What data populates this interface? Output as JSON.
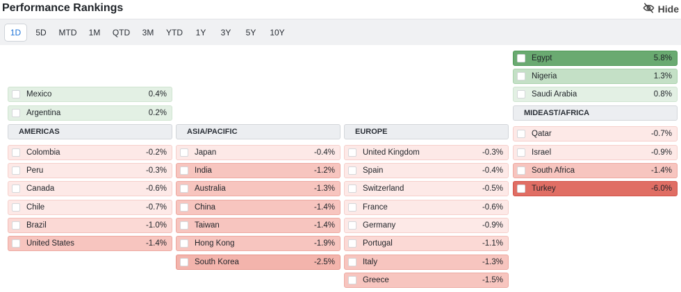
{
  "header": {
    "title": "Performance Rankings",
    "hide_label": "Hide"
  },
  "tabs": [
    {
      "label": "1D",
      "active": true
    },
    {
      "label": "5D",
      "active": false
    },
    {
      "label": "MTD",
      "active": false
    },
    {
      "label": "1M",
      "active": false
    },
    {
      "label": "QTD",
      "active": false
    },
    {
      "label": "3M",
      "active": false
    },
    {
      "label": "YTD",
      "active": false
    },
    {
      "label": "1Y",
      "active": false
    },
    {
      "label": "3Y",
      "active": false
    },
    {
      "label": "5Y",
      "active": false
    },
    {
      "label": "10Y",
      "active": false
    }
  ],
  "americas": {
    "region": "AMERICAS",
    "up": [
      {
        "name": "Mexico",
        "value": "0.4%"
      },
      {
        "name": "Argentina",
        "value": "0.2%"
      }
    ],
    "down": [
      {
        "name": "Colombia",
        "value": "-0.2%"
      },
      {
        "name": "Peru",
        "value": "-0.3%"
      },
      {
        "name": "Canada",
        "value": "-0.6%"
      },
      {
        "name": "Chile",
        "value": "-0.7%"
      },
      {
        "name": "Brazil",
        "value": "-1.0%"
      },
      {
        "name": "United States",
        "value": "-1.4%"
      }
    ]
  },
  "asia": {
    "region": "ASIA/PACIFIC",
    "down": [
      {
        "name": "Japan",
        "value": "-0.4%"
      },
      {
        "name": "India",
        "value": "-1.2%"
      },
      {
        "name": "Australia",
        "value": "-1.3%"
      },
      {
        "name": "China",
        "value": "-1.4%"
      },
      {
        "name": "Taiwan",
        "value": "-1.4%"
      },
      {
        "name": "Hong Kong",
        "value": "-1.9%"
      },
      {
        "name": "South Korea",
        "value": "-2.5%"
      }
    ]
  },
  "europe": {
    "region": "EUROPE",
    "down": [
      {
        "name": "United Kingdom",
        "value": "-0.3%"
      },
      {
        "name": "Spain",
        "value": "-0.4%"
      },
      {
        "name": "Switzerland",
        "value": "-0.5%"
      },
      {
        "name": "France",
        "value": "-0.6%"
      },
      {
        "name": "Germany",
        "value": "-0.9%"
      },
      {
        "name": "Portugal",
        "value": "-1.1%"
      },
      {
        "name": "Italy",
        "value": "-1.3%"
      },
      {
        "name": "Greece",
        "value": "-1.5%"
      }
    ]
  },
  "mideast": {
    "region": "MIDEAST/AFRICA",
    "up": [
      {
        "name": "Egypt",
        "value": "5.8%"
      },
      {
        "name": "Nigeria",
        "value": "1.3%"
      },
      {
        "name": "Saudi Arabia",
        "value": "0.8%"
      }
    ],
    "down": [
      {
        "name": "Qatar",
        "value": "-0.7%"
      },
      {
        "name": "Israel",
        "value": "-0.9%"
      },
      {
        "name": "South Africa",
        "value": "-1.4%"
      },
      {
        "name": "Turkey",
        "value": "-6.0%"
      }
    ]
  },
  "colors": {
    "accent": "#1e74d8",
    "positive_strong": "#6aaa71",
    "positive_light": "#e3f0e4",
    "negative_light": "#fde9e7",
    "negative_strong": "#e06e64"
  },
  "icons": {
    "hide": "eye-slash-icon",
    "row_checkbox": "checkbox"
  }
}
